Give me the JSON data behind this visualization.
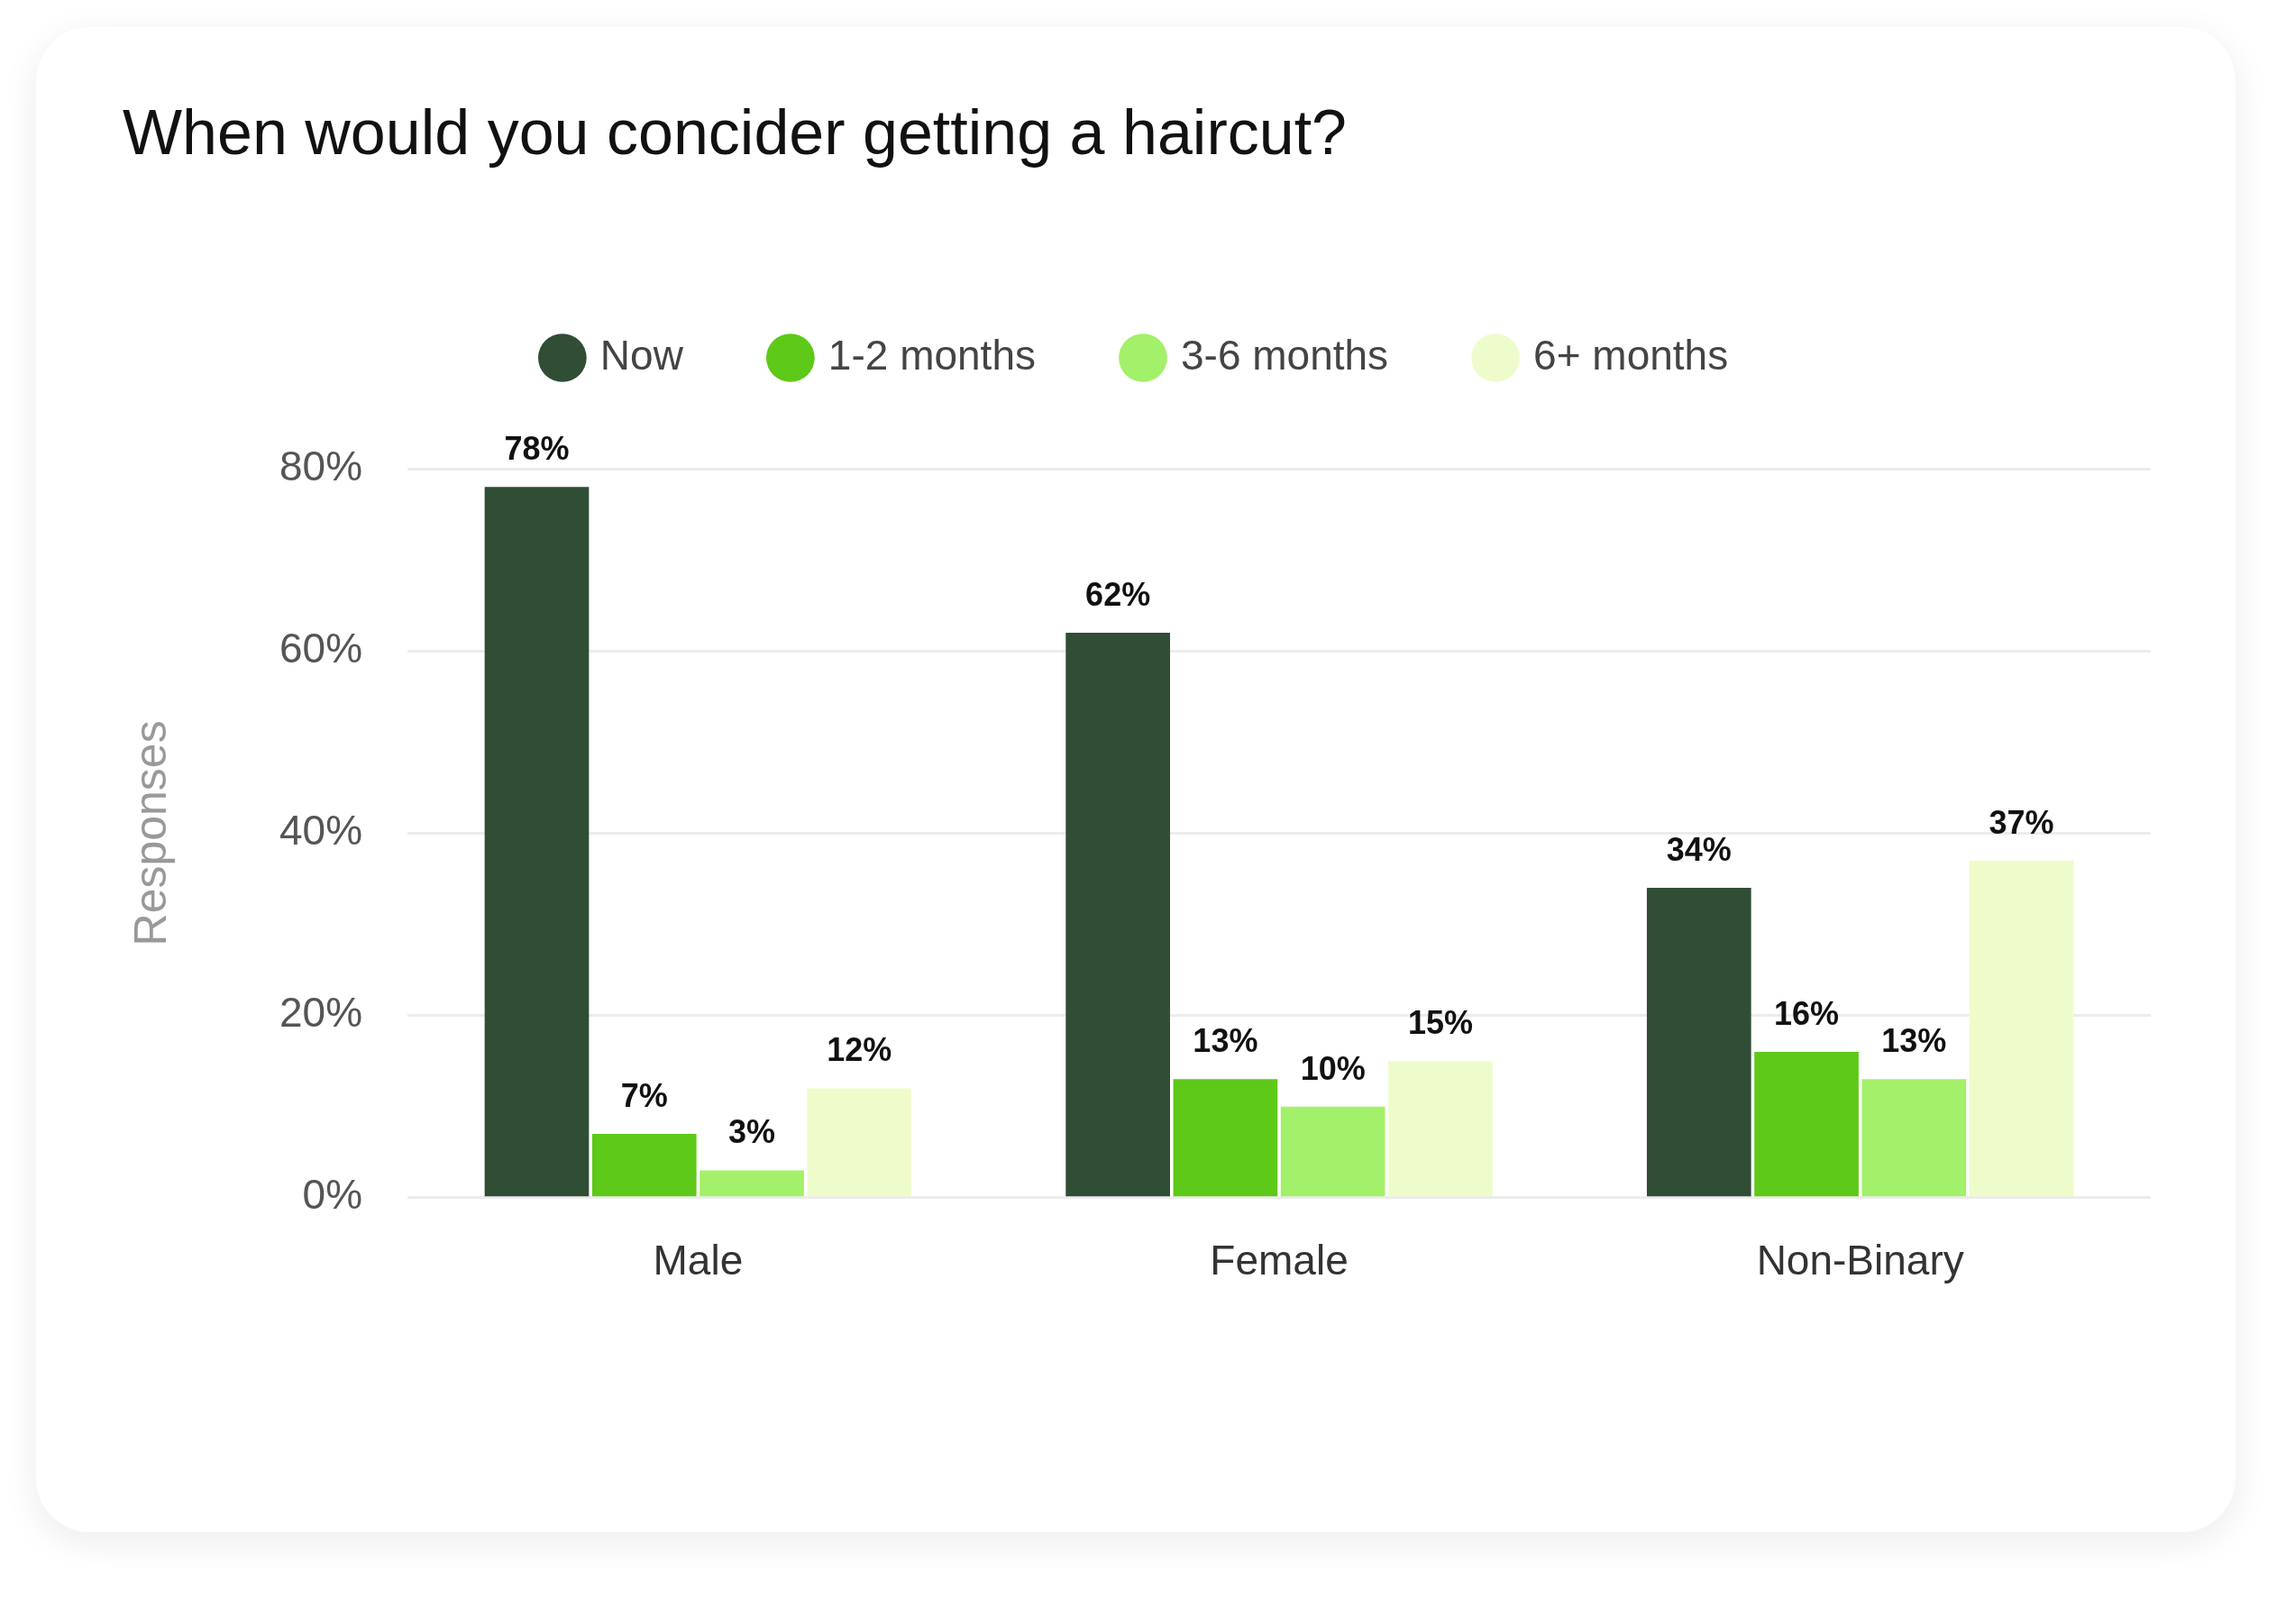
{
  "chart_data": {
    "type": "bar",
    "title": "When would you concider getting a haircut?",
    "ylabel": "Responses",
    "categories": [
      "Male",
      "Female",
      "Non-Binary"
    ],
    "series": [
      {
        "name": "Now",
        "color": "#304d36",
        "values": [
          78,
          62,
          34
        ],
        "value_labels": [
          "78%",
          "62%",
          "34%"
        ]
      },
      {
        "name": "1-2 months",
        "color": "#5ec918",
        "values": [
          7,
          13,
          16
        ],
        "value_labels": [
          "7%",
          "13%",
          "16%"
        ]
      },
      {
        "name": "3-6 months",
        "color": "#a3f06a",
        "values": [
          3,
          10,
          13
        ],
        "value_labels": [
          "3%",
          "10%",
          "13%"
        ]
      },
      {
        "name": "6+ months",
        "color": "#eefccc",
        "values": [
          12,
          15,
          37
        ],
        "value_labels": [
          "12%",
          "15%",
          "37%"
        ]
      }
    ],
    "ylim": [
      0,
      80
    ],
    "yticks": [
      {
        "value": 0,
        "label": "0%"
      },
      {
        "value": 20,
        "label": "20%"
      },
      {
        "value": 40,
        "label": "40%"
      },
      {
        "value": 60,
        "label": "60%"
      },
      {
        "value": 80,
        "label": "80%"
      }
    ],
    "grid": "y",
    "legend": "top"
  }
}
